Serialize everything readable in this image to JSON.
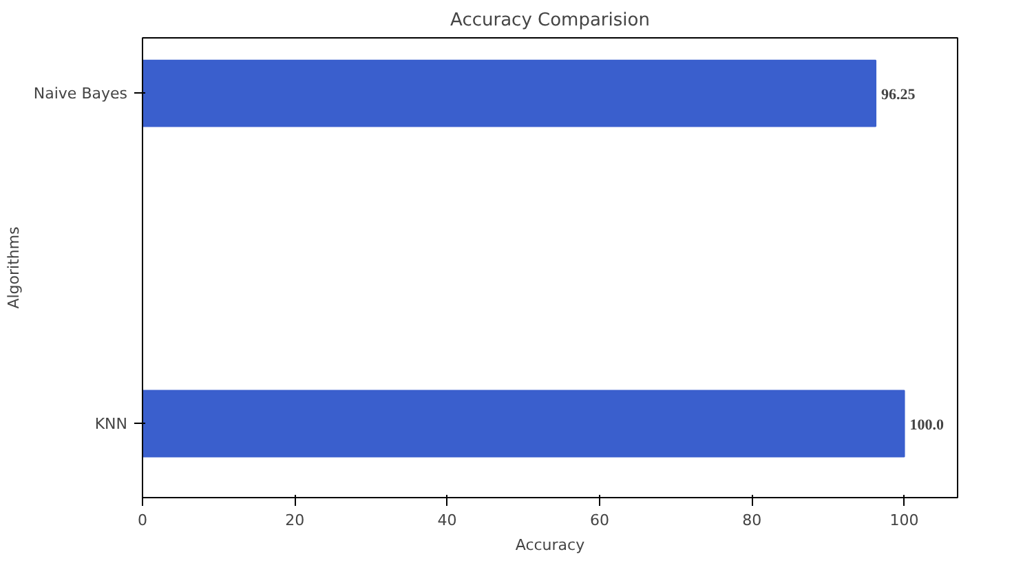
{
  "chart_data": {
    "type": "bar",
    "orientation": "horizontal",
    "title": "Accuracy Comparision",
    "xlabel": "Accuracy",
    "ylabel": "Algorithms",
    "categories": [
      "Naive Bayes",
      "KNN"
    ],
    "values": [
      96.25,
      100.0
    ],
    "color": "#3a5fcd",
    "value_labels": [
      "96.25",
      "100.0"
    ],
    "xlim": [
      0,
      107
    ],
    "xticks": [
      0,
      20,
      40,
      60,
      80,
      100
    ],
    "grid": false
  }
}
